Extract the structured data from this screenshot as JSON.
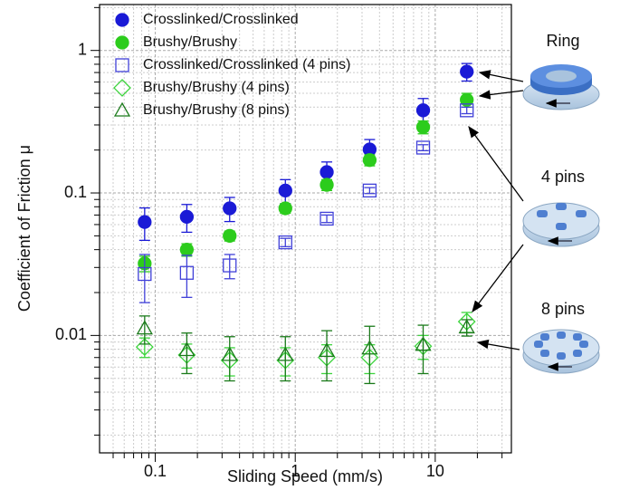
{
  "chart_data": {
    "type": "scatter",
    "log_x": true,
    "log_y": true,
    "grid": true,
    "legend": "upper left",
    "x_label": "Sliding Speed (mm/s)",
    "y_label": "Coefficient of Friction μ",
    "xlim": [
      0.04,
      35
    ],
    "ylim": [
      0.0015,
      2.1
    ],
    "xticks": [
      0.1,
      1,
      10
    ],
    "yticks": [
      0.01,
      0.1,
      1
    ],
    "xminorticks": [
      0.05,
      0.06,
      0.07,
      0.08,
      0.09,
      0.2,
      0.3,
      0.4,
      0.5,
      0.6,
      0.7,
      0.8,
      0.9,
      2,
      3,
      4,
      5,
      6,
      7,
      8,
      9,
      20,
      30
    ],
    "yminorticks": [
      0.002,
      0.003,
      0.004,
      0.005,
      0.006,
      0.007,
      0.008,
      0.009,
      0.02,
      0.03,
      0.04,
      0.05,
      0.06,
      0.07,
      0.08,
      0.09,
      0.2,
      0.3,
      0.4,
      0.5,
      0.6,
      0.7,
      0.8,
      0.9,
      2
    ],
    "x": [
      0.084,
      0.168,
      0.34,
      0.85,
      1.68,
      3.4,
      8.2,
      16.8
    ],
    "series": [
      {
        "name": "Crosslinked/Crosslinked",
        "color": "#1a1ad6",
        "marker": "circle",
        "values": [
          0.0625,
          0.068,
          0.078,
          0.104,
          0.14,
          0.202,
          0.38,
          0.71
        ],
        "errors": [
          0.016,
          0.015,
          0.015,
          0.02,
          0.025,
          0.035,
          0.08,
          0.1
        ]
      },
      {
        "name": "Brushy/Brushy",
        "color": "#2ccc1c",
        "marker": "circle",
        "values": [
          0.032,
          0.04,
          0.05,
          0.078,
          0.114,
          0.17,
          0.29,
          0.45
        ],
        "errors": [
          0.004,
          0.004,
          0.004,
          0.006,
          0.01,
          0.015,
          0.03,
          0.05
        ]
      },
      {
        "name": "Crosslinked/Crosslinked (4 pins)",
        "color": "#4040d8",
        "marker": "square",
        "values": [
          0.027,
          0.0275,
          0.031,
          0.045,
          0.066,
          0.104,
          0.208,
          0.38
        ],
        "errors": [
          0.01,
          0.009,
          0.006,
          0.003,
          0.004,
          0.005,
          0.01,
          0.02
        ]
      },
      {
        "name": "Brushy/Brushy (4 pins)",
        "color": "#3cd43c",
        "marker": "diamond",
        "values": [
          0.0083,
          0.0073,
          0.0067,
          0.0067,
          0.007,
          0.007,
          0.0084,
          0.0125
        ],
        "errors": [
          0.0013,
          0.0014,
          0.0015,
          0.0015,
          0.0016,
          0.0016,
          0.0016,
          0.002
        ]
      },
      {
        "name": "Brushy/Brushy (8 pins)",
        "color": "#1a7a1a",
        "marker": "triangle",
        "values": [
          0.0112,
          0.0079,
          0.0073,
          0.0073,
          0.0078,
          0.0081,
          0.0086,
          0.0114
        ],
        "errors": [
          0.0025,
          0.0025,
          0.0025,
          0.0025,
          0.003,
          0.0035,
          0.0032,
          0.0015
        ]
      }
    ],
    "annotations": [
      "Ring",
      "4 pins",
      "8 pins"
    ]
  }
}
